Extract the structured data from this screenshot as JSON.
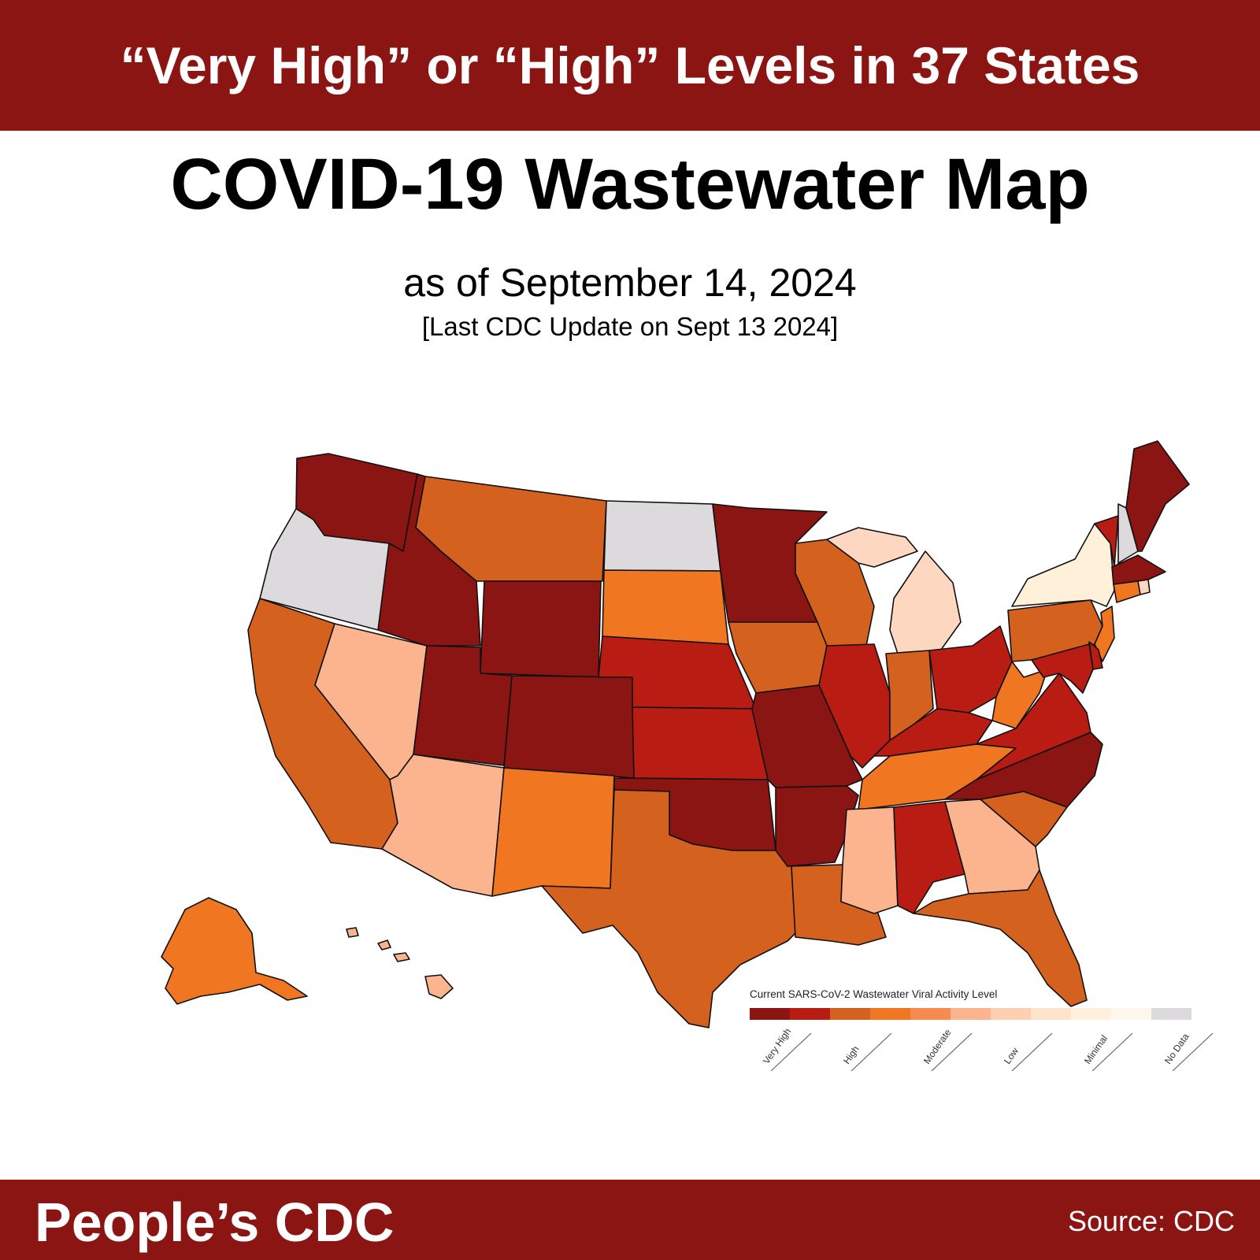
{
  "header": {
    "banner": "“Very High” or “High” Levels in 37 States",
    "title": "COVID-19 Wastewater Map",
    "subtitle": "as of September 14, 2024",
    "update_note": "[Last CDC Update on Sept 13 2024]"
  },
  "footer": {
    "brand": "People’s CDC",
    "source": "Source: CDC"
  },
  "legend": {
    "title": "Current SARS-CoV-2 Wastewater Viral Activity Level",
    "labels": [
      "Very High",
      "High",
      "Moderate",
      "Low",
      "Minimal",
      "No Data"
    ],
    "swatches": [
      "#8c1512",
      "#b91c13",
      "#d4621e",
      "#f07621",
      "#f58b4c",
      "#fcb48f",
      "#fdd0b4",
      "#fee3cc",
      "#fff0dd",
      "#fff7ec",
      "#dcdadc"
    ]
  },
  "level_colors": {
    "very_high": "#8b1512",
    "high": "#b91c13",
    "high_lower": "#d4621e",
    "moderate": "#f07621",
    "low": "#fcb48f",
    "minimal_upper": "#fdd7bf",
    "minimal": "#fff0d9",
    "no_data": "#dcdadc"
  },
  "states": [
    {
      "id": "WA",
      "level": "very_high"
    },
    {
      "id": "OR",
      "level": "no_data"
    },
    {
      "id": "CA",
      "level": "high_lower"
    },
    {
      "id": "NV",
      "level": "low"
    },
    {
      "id": "ID",
      "level": "very_high"
    },
    {
      "id": "MT",
      "level": "high_lower"
    },
    {
      "id": "WY",
      "level": "very_high"
    },
    {
      "id": "UT",
      "level": "very_high"
    },
    {
      "id": "CO",
      "level": "very_high"
    },
    {
      "id": "AZ",
      "level": "low"
    },
    {
      "id": "NM",
      "level": "moderate"
    },
    {
      "id": "ND",
      "level": "no_data"
    },
    {
      "id": "SD",
      "level": "moderate"
    },
    {
      "id": "NE",
      "level": "high"
    },
    {
      "id": "KS",
      "level": "high"
    },
    {
      "id": "OK",
      "level": "very_high"
    },
    {
      "id": "TX",
      "level": "high_lower"
    },
    {
      "id": "MN",
      "level": "very_high"
    },
    {
      "id": "IA",
      "level": "high_lower"
    },
    {
      "id": "MO",
      "level": "very_high"
    },
    {
      "id": "AR",
      "level": "very_high"
    },
    {
      "id": "LA",
      "level": "high_lower"
    },
    {
      "id": "WI",
      "level": "high_lower"
    },
    {
      "id": "IL",
      "level": "high"
    },
    {
      "id": "MI",
      "level": "minimal_upper"
    },
    {
      "id": "IN",
      "level": "high_lower"
    },
    {
      "id": "OH",
      "level": "high"
    },
    {
      "id": "KY",
      "level": "high"
    },
    {
      "id": "TN",
      "level": "moderate"
    },
    {
      "id": "MS",
      "level": "low"
    },
    {
      "id": "AL",
      "level": "high"
    },
    {
      "id": "GA",
      "level": "low"
    },
    {
      "id": "FL",
      "level": "high_lower"
    },
    {
      "id": "SC",
      "level": "high_lower"
    },
    {
      "id": "NC",
      "level": "very_high"
    },
    {
      "id": "VA",
      "level": "high"
    },
    {
      "id": "WV",
      "level": "moderate"
    },
    {
      "id": "PA",
      "level": "high_lower"
    },
    {
      "id": "NY",
      "level": "minimal"
    },
    {
      "id": "VT",
      "level": "high"
    },
    {
      "id": "NH",
      "level": "no_data"
    },
    {
      "id": "ME",
      "level": "very_high"
    },
    {
      "id": "MA",
      "level": "very_high"
    },
    {
      "id": "CT",
      "level": "moderate"
    },
    {
      "id": "RI",
      "level": "minimal_upper"
    },
    {
      "id": "NJ",
      "level": "moderate"
    },
    {
      "id": "DE",
      "level": "high"
    },
    {
      "id": "MD",
      "level": "high"
    },
    {
      "id": "AK",
      "level": "moderate"
    },
    {
      "id": "HI",
      "level": "low"
    }
  ]
}
